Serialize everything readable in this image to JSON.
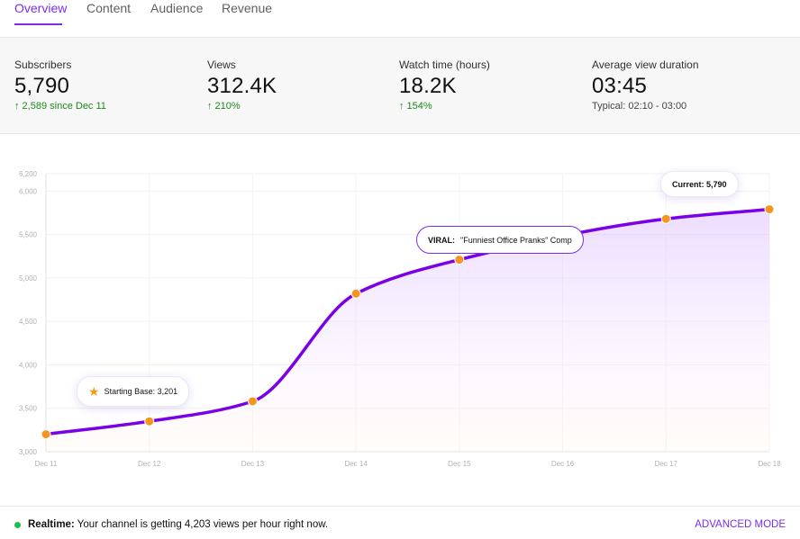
{
  "tabs": [
    {
      "label": "Overview",
      "active": true
    },
    {
      "label": "Content",
      "active": false
    },
    {
      "label": "Audience",
      "active": false
    },
    {
      "label": "Revenue",
      "active": false
    }
  ],
  "stats": [
    {
      "label": "Subscribers",
      "value": "5,790",
      "sub": "↑ 2,589 since Dec 11",
      "sub_style": "up"
    },
    {
      "label": "Views",
      "value": "312.4K",
      "sub": "↑ 210%",
      "sub_style": "up"
    },
    {
      "label": "Watch time (hours)",
      "value": "18.2K",
      "sub": "↑ 154%",
      "sub_style": "up"
    },
    {
      "label": "Average view duration",
      "value": "03:45",
      "sub": "Typical: 02:10 - 03:00",
      "sub_style": "neutral"
    }
  ],
  "chart_data": {
    "type": "area",
    "title": "",
    "xlabel": "",
    "ylabel": "",
    "categories": [
      "Dec 11",
      "Dec 12",
      "Dec 13",
      "Dec 14",
      "Dec 15",
      "Dec 16",
      "Dec 17",
      "Dec 18"
    ],
    "y_ticks": [
      "3,000",
      "3,500",
      "4,000",
      "4,500",
      "5,000",
      "5,500",
      "6,000",
      "6,200"
    ],
    "ylim": [
      3000,
      6200
    ],
    "grid": true,
    "series": [
      {
        "x": [
          0,
          1,
          2,
          3,
          4,
          6,
          7
        ],
        "values": [
          3201,
          3350,
          3580,
          4820,
          5210,
          5680,
          5790
        ]
      }
    ],
    "line_color": "#7a00e6",
    "marker_color": "#f7941d",
    "annotations": {
      "start": {
        "label": "Starting Base: 3,201",
        "icon": "star-icon"
      },
      "viral": {
        "prefix": "VIRAL:",
        "text": "\"Funniest Office Pranks\" Comp"
      },
      "current": {
        "label": "Current: 5,790"
      }
    }
  },
  "footer": {
    "realtime_label": "Realtime:",
    "realtime_text": "Your channel is getting 4,203 views per hour right now.",
    "advanced_mode": "ADVANCED MODE"
  },
  "colors": {
    "accent": "#7a2ee6",
    "positive": "#1a8a1a",
    "live_dot": "#1fbf4e"
  }
}
